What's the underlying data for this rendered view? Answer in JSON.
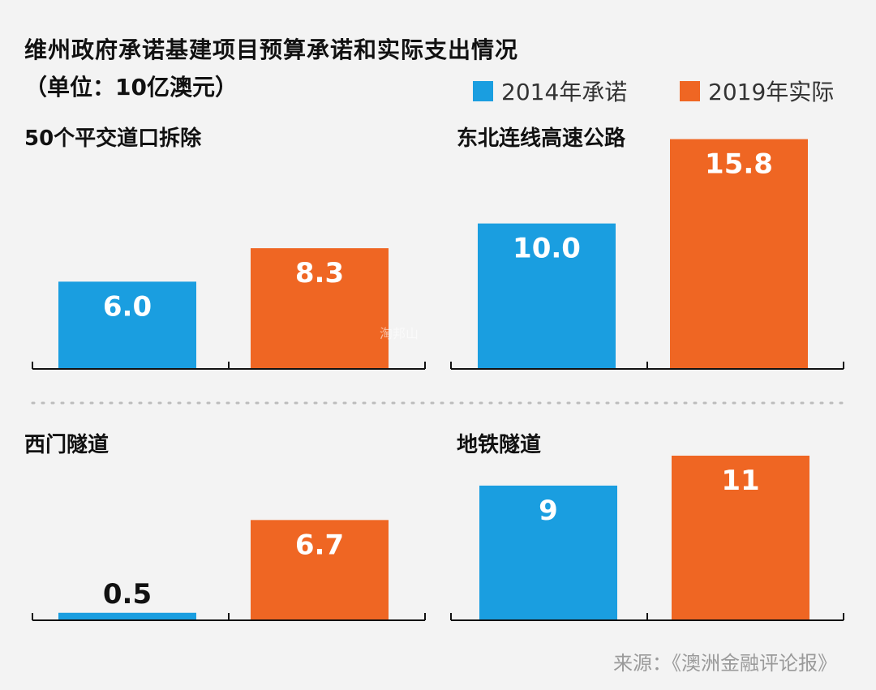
{
  "title": "维州政府承诺基建项目预算承诺和实际支出情况",
  "unit": "（单位：10亿澳元）",
  "legend": [
    {
      "label": "2014年承诺",
      "color": "#1a9ee0"
    },
    {
      "label": "2019年实际",
      "color": "#ef6623"
    }
  ],
  "source": "来源：《澳洲金融评论报》",
  "watermark": "淘邦山",
  "chart_data": [
    {
      "type": "bar",
      "title": "50个平交道口拆除",
      "categories": [
        "2014年承诺",
        "2019年实际"
      ],
      "values": [
        6.0,
        8.3
      ],
      "labels": [
        "6.0",
        "8.3"
      ],
      "ylim": [
        0,
        16
      ]
    },
    {
      "type": "bar",
      "title": "东北连线高速公路",
      "categories": [
        "2014年承诺",
        "2019年实际"
      ],
      "values": [
        10.0,
        15.8
      ],
      "labels": [
        "10.0",
        "15.8"
      ],
      "ylim": [
        0,
        16
      ]
    },
    {
      "type": "bar",
      "title": "西门隧道",
      "categories": [
        "2014年承诺",
        "2019年实际"
      ],
      "values": [
        0.5,
        6.7
      ],
      "labels": [
        "0.5",
        "6.7"
      ],
      "ylim": [
        0,
        11
      ]
    },
    {
      "type": "bar",
      "title": "地铁隧道",
      "categories": [
        "2014年承诺",
        "2019年实际"
      ],
      "values": [
        9,
        11
      ],
      "labels": [
        "9",
        "11"
      ],
      "ylim": [
        0,
        11
      ]
    }
  ]
}
